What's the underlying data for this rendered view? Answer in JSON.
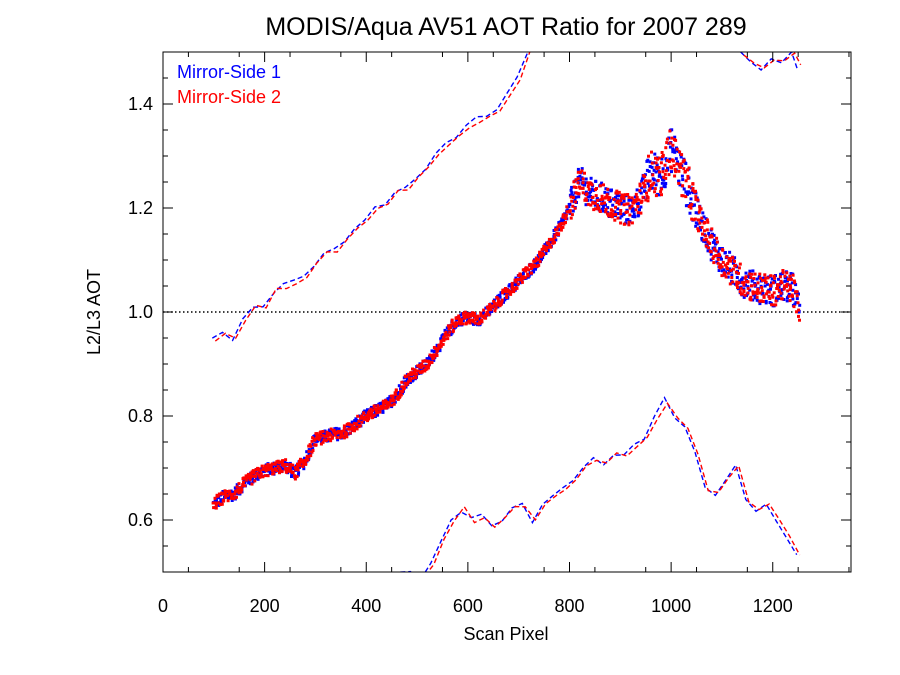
{
  "chart_data": {
    "type": "scatter",
    "title": "MODIS/Aqua AV51 AOT Ratio for 2007 289",
    "xlabel": "Scan Pixel",
    "ylabel": "L2/L3 AOT",
    "xlim": [
      0,
      1354
    ],
    "ylim": [
      0.5,
      1.5
    ],
    "x_ticks": [
      0,
      200,
      400,
      600,
      800,
      1000,
      1200
    ],
    "x_tick_labels": [
      "0",
      "200",
      "400",
      "600",
      "800",
      "1000",
      "1200"
    ],
    "y_ticks": [
      0.6,
      0.8,
      1.0,
      1.2,
      1.4
    ],
    "y_tick_labels": [
      "0.6",
      "0.8",
      "1.0",
      "1.2",
      "1.4"
    ],
    "reference_line": 1.0,
    "legend": {
      "position": "top-left"
    },
    "colors": {
      "side1": "#0000ff",
      "side2": "#ff0000",
      "axis": "#000000"
    },
    "series": [
      {
        "name": "Mirror-Side 1",
        "color": "#0000ff"
      },
      {
        "name": "Mirror-Side 2",
        "color": "#ff0000"
      }
    ],
    "mean_profile": {
      "x": [
        100,
        120,
        140,
        160,
        180,
        200,
        220,
        240,
        260,
        280,
        300,
        320,
        340,
        360,
        380,
        400,
        420,
        440,
        460,
        480,
        500,
        520,
        540,
        560,
        580,
        600,
        620,
        640,
        660,
        680,
        700,
        720,
        740,
        760,
        780,
        800,
        820,
        840,
        860,
        880,
        900,
        920,
        940,
        960,
        980,
        1000,
        1020,
        1040,
        1060,
        1080,
        1100,
        1120,
        1140,
        1160,
        1180,
        1200,
        1220,
        1240,
        1252
      ],
      "y": [
        0.63,
        0.645,
        0.65,
        0.67,
        0.685,
        0.695,
        0.7,
        0.705,
        0.69,
        0.715,
        0.755,
        0.76,
        0.765,
        0.77,
        0.785,
        0.8,
        0.81,
        0.82,
        0.84,
        0.87,
        0.885,
        0.9,
        0.93,
        0.96,
        0.985,
        0.99,
        0.985,
        1.0,
        1.02,
        1.04,
        1.06,
        1.08,
        1.1,
        1.13,
        1.16,
        1.2,
        1.25,
        1.23,
        1.22,
        1.21,
        1.2,
        1.195,
        1.22,
        1.27,
        1.26,
        1.315,
        1.27,
        1.22,
        1.17,
        1.13,
        1.1,
        1.08,
        1.06,
        1.05,
        1.045,
        1.04,
        1.05,
        1.045,
        1.0
      ]
    },
    "upper_envelope": {
      "x": [
        100,
        120,
        140,
        160,
        180,
        200,
        220,
        240,
        260,
        280,
        300,
        320,
        340,
        360,
        380,
        400,
        420,
        440,
        460,
        480,
        500,
        520,
        540,
        560,
        580,
        600,
        620,
        640,
        660,
        680,
        700,
        720
      ],
      "y": [
        0.95,
        0.96,
        0.95,
        0.99,
        1.01,
        1.01,
        1.04,
        1.05,
        1.06,
        1.07,
        1.09,
        1.11,
        1.12,
        1.14,
        1.16,
        1.18,
        1.2,
        1.21,
        1.23,
        1.24,
        1.26,
        1.28,
        1.3,
        1.32,
        1.34,
        1.36,
        1.37,
        1.38,
        1.39,
        1.42,
        1.45,
        1.5
      ]
    },
    "upper_envelope_right": {
      "x": [
        1140,
        1160,
        1180,
        1200,
        1220,
        1240,
        1252
      ],
      "y": [
        1.5,
        1.48,
        1.47,
        1.49,
        1.48,
        1.5,
        1.47
      ]
    },
    "lower_envelope": {
      "x": [
        470,
        490,
        510,
        530,
        550,
        570,
        590,
        610,
        630,
        650,
        670,
        690,
        710,
        730,
        750,
        770,
        790,
        810,
        830,
        850,
        870,
        890,
        910,
        930,
        950,
        970,
        990,
        1010,
        1030,
        1050,
        1070,
        1090,
        1110,
        1130,
        1150,
        1170,
        1190,
        1210,
        1230,
        1250
      ],
      "y": [
        0.5,
        0.5,
        0.49,
        0.52,
        0.56,
        0.6,
        0.62,
        0.6,
        0.61,
        0.59,
        0.6,
        0.62,
        0.63,
        0.6,
        0.63,
        0.65,
        0.66,
        0.68,
        0.7,
        0.72,
        0.71,
        0.73,
        0.72,
        0.74,
        0.76,
        0.8,
        0.83,
        0.8,
        0.78,
        0.73,
        0.66,
        0.65,
        0.68,
        0.7,
        0.64,
        0.62,
        0.63,
        0.6,
        0.57,
        0.53
      ]
    }
  }
}
